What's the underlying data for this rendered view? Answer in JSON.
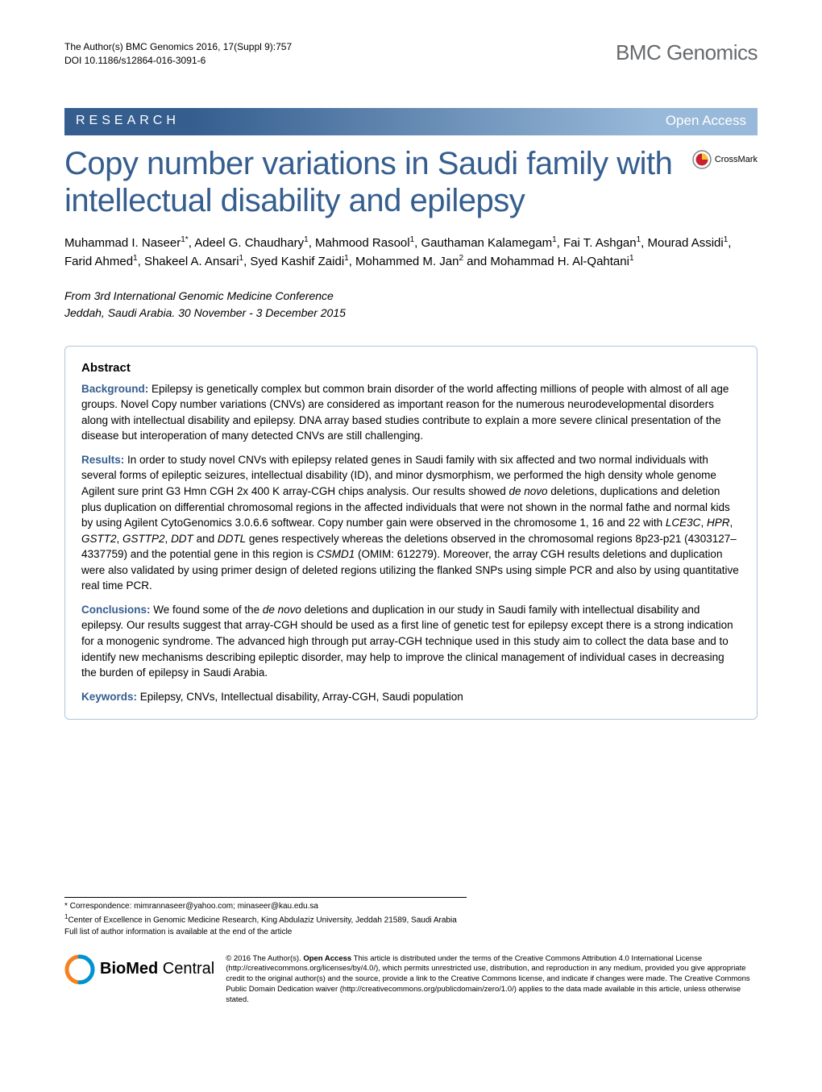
{
  "header": {
    "citation_line": "The Author(s) BMC Genomics 2016, 17(Suppl 9):757",
    "doi_line": "DOI 10.1186/s12864-016-3091-6",
    "journal": "BMC Genomics"
  },
  "banner": {
    "left": "RESEARCH",
    "right": "Open Access"
  },
  "title": "Copy number variations in Saudi family with intellectual disability and epilepsy",
  "crossmark_label": "CrossMark",
  "authors_html": "Muhammad I. Naseer<sup>1*</sup>, Adeel G. Chaudhary<sup>1</sup>, Mahmood Rasool<sup>1</sup>, Gauthaman Kalamegam<sup>1</sup>, Fai T. Ashgan<sup>1</sup>, Mourad Assidi<sup>1</sup>, Farid Ahmed<sup>1</sup>, Shakeel A. Ansari<sup>1</sup>, Syed Kashif Zaidi<sup>1</sup>, Mohammed M. Jan<sup>2</sup> and Mohammad H. Al-Qahtani<sup>1</sup>",
  "conference": {
    "from_label": "From",
    "name": "3rd International Genomic Medicine Conference",
    "location": "Jeddah, Saudi Arabia. 30 November - 3 December 2015"
  },
  "abstract": {
    "heading": "Abstract",
    "background": {
      "label": "Background:",
      "text": " Epilepsy is genetically complex but common brain disorder of the world affecting millions of people with almost of all age groups. Novel Copy number variations (CNVs) are considered as important reason for the numerous neurodevelopmental disorders along with intellectual disability and epilepsy. DNA array based studies contribute to explain a more severe clinical presentation of the disease but interoperation of many detected CNVs are still challenging."
    },
    "results": {
      "label": "Results:",
      "text_pre": " In order to study novel CNVs with epilepsy related genes in Saudi family with six affected and two normal individuals with several forms of epileptic seizures, intellectual disability (ID), and minor dysmorphism, we performed the high density whole genome Agilent sure print G3 Hmn CGH 2x 400 K array-CGH chips analysis. Our results showed ",
      "denovo": "de novo",
      "text_mid1": " deletions, duplications and deletion plus duplication on differential chromosomal regions in the affected individuals that were not shown in the normal fathe and normal kids by using Agilent CytoGenomics 3.0.6.6 softwear. Copy number gain were observed in the chromosome 1, 16 and 22 with ",
      "gene1": "LCE3C",
      "gene2": "HPR",
      "gene3": "GSTT2",
      "gene4": "GSTTP2",
      "gene5": "DDT",
      "gene6": "DDTL",
      "text_mid2": " genes respectively whereas the deletions observed in the chromosomal regions 8p23-p21 (4303127–4337759) and the potential gene in this region is ",
      "gene7": "CSMD1",
      "omim": " (OMIM: 612279). Moreover, the array CGH results deletions and duplication were also validated by using primer design of deleted regions utilizing the flanked SNPs using simple PCR and also by using quantitative real time PCR."
    },
    "conclusions": {
      "label": "Conclusions:",
      "text_pre": " We found some of the ",
      "denovo": "de novo",
      "text_post": " deletions and duplication in our study in Saudi family with intellectual disability and epilepsy. Our results suggest that array-CGH should be used as a first line of genetic test for epilepsy except there is a strong indication for a monogenic syndrome. The advanced high through put array-CGH technique used in this study aim to collect the data base and to identify new mechanisms describing epileptic disorder, may help to improve the clinical management of individual cases in decreasing the burden of epilepsy in Saudi Arabia."
    },
    "keywords": {
      "label": "Keywords:",
      "text": " Epilepsy, CNVs, Intellectual disability, Array-CGH, Saudi population"
    }
  },
  "footer": {
    "correspondence": "* Correspondence: mimrannaseer@yahoo.com; minaseer@kau.edu.sa",
    "affiliation": "Center of Excellence in Genomic Medicine Research, King Abdulaziz University, Jeddah 21589, Saudi Arabia",
    "full_list": "Full list of author information is available at the end of the article"
  },
  "license": {
    "bmc_bold": "BioMed",
    "bmc_light": " Central",
    "copyright": "© 2016 The Author(s). ",
    "open_access_label": "Open Access",
    "text": " This article is distributed under the terms of the Creative Commons Attribution 4.0 International License (http://creativecommons.org/licenses/by/4.0/), which permits unrestricted use, distribution, and reproduction in any medium, provided you give appropriate credit to the original author(s) and the source, provide a link to the Creative Commons license, and indicate if changes were made. The Creative Commons Public Domain Dedication waiver (http://creativecommons.org/publicdomain/zero/1.0/) applies to the data made available in this article, unless otherwise stated."
  },
  "colors": {
    "brand_blue": "#355e8f",
    "light_blue": "#98b9d9",
    "box_border": "#aec6df",
    "journal_gray": "#666a6d",
    "crossmark_red": "#c8202f",
    "crossmark_yellow": "#f4c430",
    "bmc_orange": "#f58220",
    "bmc_blue": "#0093d0"
  }
}
